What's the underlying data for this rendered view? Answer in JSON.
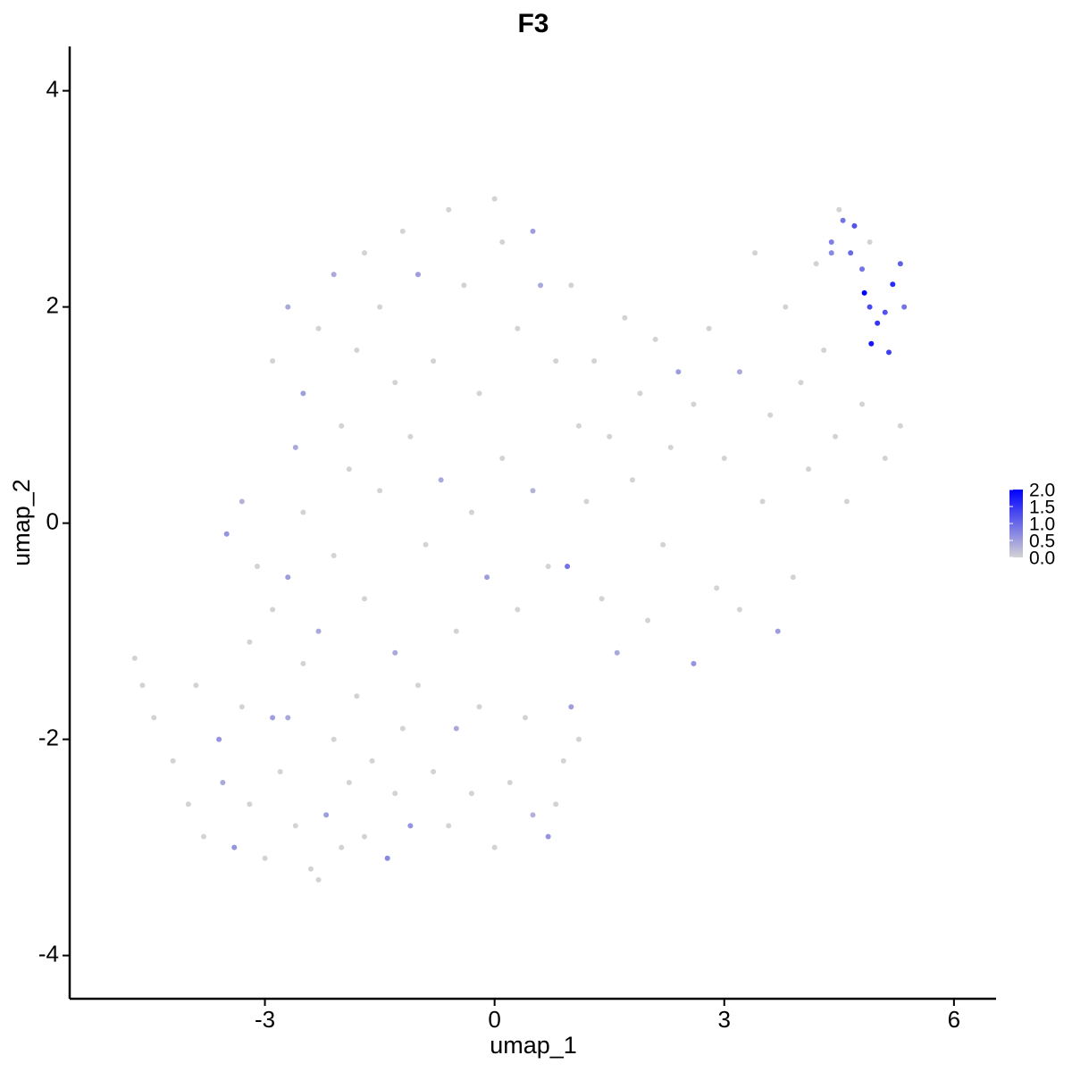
{
  "chart_data": {
    "type": "scatter",
    "title": "F3",
    "x_label": "umap_1",
    "y_label": "umap_2",
    "xlim": [
      -5.55,
      6.55
    ],
    "ylim": [
      -4.4,
      4.41
    ],
    "xticks": [
      -3,
      0,
      3,
      6
    ],
    "yticks": [
      -4,
      -2,
      0,
      2,
      4
    ],
    "colorlim": [
      0,
      2
    ],
    "color_low": "#d3d3d3",
    "color_high": "#0000ff",
    "colorticks": [
      {
        "value": 0,
        "label": "0.0"
      },
      0.5,
      {
        "value": 1,
        "label": "1.0"
      },
      1.5,
      {
        "value": 2,
        "label": "2.0"
      }
    ],
    "x": [
      -4.7,
      -4.6,
      -4.45,
      -4.2,
      -4.0,
      -3.9,
      -3.8,
      -3.6,
      -3.55,
      -3.4,
      -3.3,
      -3.2,
      -3.0,
      -2.9,
      -2.8,
      -2.6,
      -2.5,
      -2.7,
      -2.4,
      -2.3,
      -2.2,
      -2.1,
      -2.0,
      -1.9,
      -1.8,
      -1.7,
      -1.6,
      -1.4,
      -1.3,
      -1.2,
      -1.1,
      -1.0,
      -0.8,
      -0.6,
      -0.5,
      -0.3,
      -0.2,
      0,
      0.2,
      0.4,
      0.5,
      0.7,
      0.9,
      1.0,
      0.8,
      1.1,
      -3.5,
      -3.3,
      -3.1,
      -2.9,
      -3.2,
      -2.7,
      -2.5,
      -2.3,
      -2.1,
      -1.9,
      -1.7,
      -1.5,
      -1.3,
      -1.1,
      -0.9,
      -0.7,
      -0.5,
      -0.3,
      -0.1,
      0.1,
      0.3,
      0.5,
      0.7,
      0.95,
      1.2,
      1.4,
      1.6,
      1.8,
      2.0,
      2.2,
      -2.9,
      -2.7,
      -2.5,
      -2.6,
      -2.3,
      -2.1,
      -2.0,
      -1.8,
      -1.7,
      -1.5,
      -1.3,
      -1.2,
      -1.0,
      -0.8,
      -0.6,
      -0.4,
      -0.2,
      0,
      0.1,
      0.3,
      0.5,
      0.6,
      0.8,
      1.0,
      1.1,
      1.3,
      1.5,
      1.7,
      1.9,
      2.1,
      2.3,
      2.4,
      2.6,
      2.8,
      3.0,
      3.2,
      3.4,
      3.5,
      3.6,
      3.8,
      3.9,
      4.0,
      4.1,
      4.2,
      4.3,
      4.45,
      4.5,
      3.7,
      3.2,
      2.6,
      2.9,
      4.6,
      4.8,
      4.9,
      5.1,
      5.3,
      4.4,
      4.55,
      4.7,
      4.65,
      4.83,
      4.9,
      4.92,
      5.0,
      5.1,
      5.2,
      5.3,
      5.15,
      4.8,
      5.35,
      4.4
    ],
    "y": [
      -1.25,
      -1.5,
      -1.8,
      -2.2,
      -2.6,
      -1.5,
      -2.9,
      -2.0,
      -2.4,
      -3.0,
      -1.7,
      -2.6,
      -3.1,
      -1.8,
      -2.3,
      -2.8,
      -1.3,
      -1.8,
      -3.2,
      -3.3,
      -2.7,
      -2.0,
      -3.0,
      -2.4,
      -1.6,
      -2.9,
      -2.2,
      -3.1,
      -2.5,
      -1.9,
      -2.8,
      -1.5,
      -2.3,
      -2.8,
      -1.9,
      -2.5,
      -1.7,
      -3.0,
      -2.4,
      -1.8,
      -2.7,
      -2.9,
      -2.2,
      -1.7,
      -2.6,
      -2.0,
      -0.1,
      0.2,
      -0.4,
      -0.8,
      -1.1,
      -0.5,
      0.1,
      -1.0,
      -0.3,
      0.5,
      -0.7,
      0.3,
      -1.2,
      0.8,
      -0.2,
      0.4,
      -1.0,
      0.1,
      -0.5,
      0.6,
      -0.8,
      0.3,
      -0.4,
      -0.4,
      0.2,
      -0.7,
      -1.2,
      0.4,
      -0.9,
      -0.2,
      1.5,
      2.0,
      1.2,
      0.7,
      1.8,
      2.3,
      0.9,
      1.6,
      2.5,
      2.0,
      1.3,
      2.7,
      2.3,
      1.5,
      2.9,
      2.2,
      1.2,
      3.0,
      2.6,
      1.8,
      2.7,
      2.2,
      1.5,
      2.2,
      0.9,
      1.5,
      0.8,
      1.9,
      1.2,
      1.7,
      0.7,
      1.4,
      1.1,
      1.8,
      0.6,
      1.4,
      2.5,
      0.2,
      1.0,
      2.0,
      -0.5,
      1.3,
      0.5,
      2.4,
      1.6,
      0.8,
      2.9,
      -1.0,
      -0.8,
      -1.3,
      -0.6,
      0.2,
      1.1,
      2.6,
      0.6,
      0.9,
      2.6,
      2.8,
      2.75,
      2.5,
      2.13,
      2.0,
      1.66,
      1.85,
      1.95,
      2.21,
      2.4,
      1.58,
      2.35,
      2.0,
      2.5
    ],
    "values": [
      0,
      0,
      0,
      0,
      0,
      0,
      0,
      0.6,
      0.4,
      0.6,
      0,
      0,
      0,
      0.5,
      0,
      0,
      0,
      0.4,
      0,
      0,
      0.5,
      0,
      0,
      0,
      0,
      0,
      0,
      0.7,
      0,
      0,
      0.6,
      0,
      0,
      0,
      0.4,
      0,
      0,
      0,
      0,
      0,
      0.3,
      0.6,
      0,
      0.5,
      0,
      0,
      0.6,
      0.3,
      0,
      0,
      0,
      0.5,
      0,
      0.4,
      0,
      0,
      0,
      0,
      0.4,
      0,
      0,
      0.4,
      0,
      0,
      0.5,
      0,
      0,
      0.3,
      0,
      0.9,
      0,
      0,
      0.4,
      0,
      0,
      0,
      0,
      0.4,
      0.5,
      0.4,
      0,
      0.4,
      0,
      0,
      0,
      0,
      0,
      0,
      0.5,
      0,
      0,
      0,
      0,
      0,
      0,
      0,
      0.5,
      0.4,
      0,
      0,
      0,
      0,
      0,
      0,
      0,
      0,
      0,
      0.5,
      0,
      0,
      0,
      0.4,
      0,
      0,
      0,
      0,
      0,
      0,
      0,
      0,
      0,
      0,
      0,
      0.5,
      0,
      0.6,
      0,
      0,
      0,
      0,
      0,
      0,
      0.8,
      0.9,
      1.2,
      1.0,
      2.0,
      1.3,
      1.8,
      1.5,
      1.2,
      1.6,
      1.1,
      1.4,
      0.9,
      0.9,
      0.7
    ]
  }
}
